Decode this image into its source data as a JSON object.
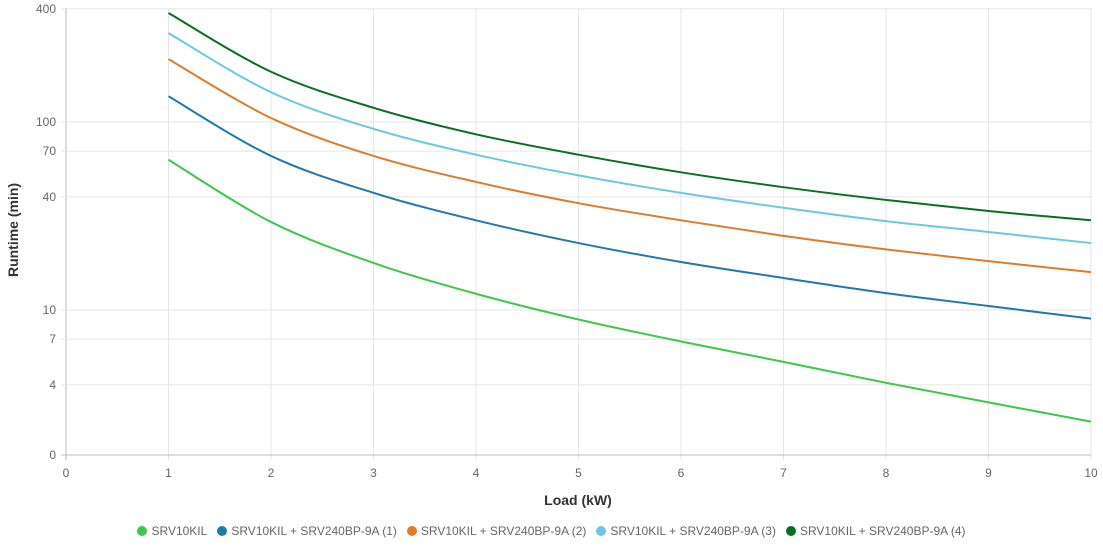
{
  "chart_data": {
    "type": "line",
    "xlabel": "Load (kW)",
    "ylabel": "Runtime (min)",
    "xlim": [
      0,
      10
    ],
    "ylim": [
      0,
      400
    ],
    "yscale": "log (linear below 4)",
    "x_ticks": [
      "0",
      "1",
      "2",
      "3",
      "4",
      "5",
      "6",
      "7",
      "8",
      "9",
      "10"
    ],
    "y_ticks": [
      {
        "v": 0,
        "label": "0"
      },
      {
        "v": 4,
        "label": "4"
      },
      {
        "v": 7,
        "label": "7"
      },
      {
        "v": 10,
        "label": "10"
      },
      {
        "v": 40,
        "label": "40"
      },
      {
        "v": 70,
        "label": "70"
      },
      {
        "v": 100,
        "label": "100"
      },
      {
        "v": 400,
        "label": "400"
      }
    ],
    "grid": true,
    "legend_position": "bottom",
    "x": [
      1,
      2,
      3,
      4,
      5,
      6,
      7,
      8,
      9,
      10
    ],
    "series": [
      {
        "name": "SRV10KIL",
        "color": "#3cc84a",
        "values": [
          63,
          29.4,
          17.8,
          12.2,
          8.9,
          6.8,
          5.3,
          4.1,
          3.0,
          1.9
        ]
      },
      {
        "name": "SRV10KIL + SRV240BP-9A (1)",
        "color": "#1f78b0",
        "values": [
          137,
          66,
          42,
          30,
          22.7,
          18,
          14.8,
          12.3,
          10.5,
          9.0
        ]
      },
      {
        "name": "SRV10KIL + SRV240BP-9A (2)",
        "color": "#e07b2a",
        "values": [
          216,
          105,
          66,
          48,
          37,
          30,
          24.8,
          21,
          18.2,
          15.9
        ]
      },
      {
        "name": "SRV10KIL + SRV240BP-9A (3)",
        "color": "#6ac8df",
        "values": [
          297,
          144,
          92,
          67,
          52,
          42,
          35,
          29.7,
          26,
          22.7
        ]
      },
      {
        "name": "SRV10KIL + SRV240BP-9A (4)",
        "color": "#0b6e23",
        "values": [
          380,
          185,
          119,
          86,
          67,
          54,
          45,
          38.5,
          33.6,
          30
        ]
      }
    ]
  }
}
